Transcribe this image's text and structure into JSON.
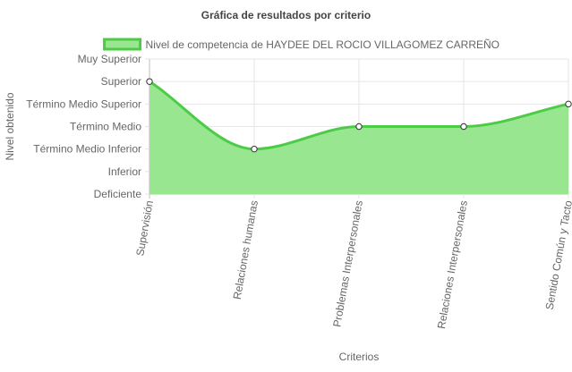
{
  "colors": {
    "fill": "#98e690",
    "line": "#4ccc46",
    "grid": "#e6e6e6",
    "axis": "#bdbdbd",
    "text": "#666666",
    "title": "#444444",
    "point_fill": "#ffffff",
    "point_stroke": "#333333"
  },
  "chart_data": {
    "type": "area",
    "title": "Gráfica de resultados por criterio",
    "xlabel": "Criterios",
    "ylabel": "Nivel obtenido",
    "legend_position": "top",
    "grid": true,
    "categories": [
      "Supervisión",
      "Relaciones humanas",
      "Problemas Interpersonales",
      "Relaciones Interpersonales",
      "Sentido Común y Tacto"
    ],
    "y_levels": [
      "Deficiente",
      "Inferior",
      "Término Medio Inferior",
      "Término Medio",
      "Término Medio Superior",
      "Superior",
      "Muy Superior"
    ],
    "ylim": [
      0,
      6
    ],
    "series": [
      {
        "name": "Nivel de competencia de HAYDEE DEL ROCIO VILLAGOMEZ CARREÑO",
        "values": [
          5,
          2,
          3,
          3,
          4
        ],
        "value_labels": [
          "Superior",
          "Término Medio Inferior",
          "Término Medio",
          "Término Medio",
          "Término Medio Superior"
        ]
      }
    ]
  }
}
